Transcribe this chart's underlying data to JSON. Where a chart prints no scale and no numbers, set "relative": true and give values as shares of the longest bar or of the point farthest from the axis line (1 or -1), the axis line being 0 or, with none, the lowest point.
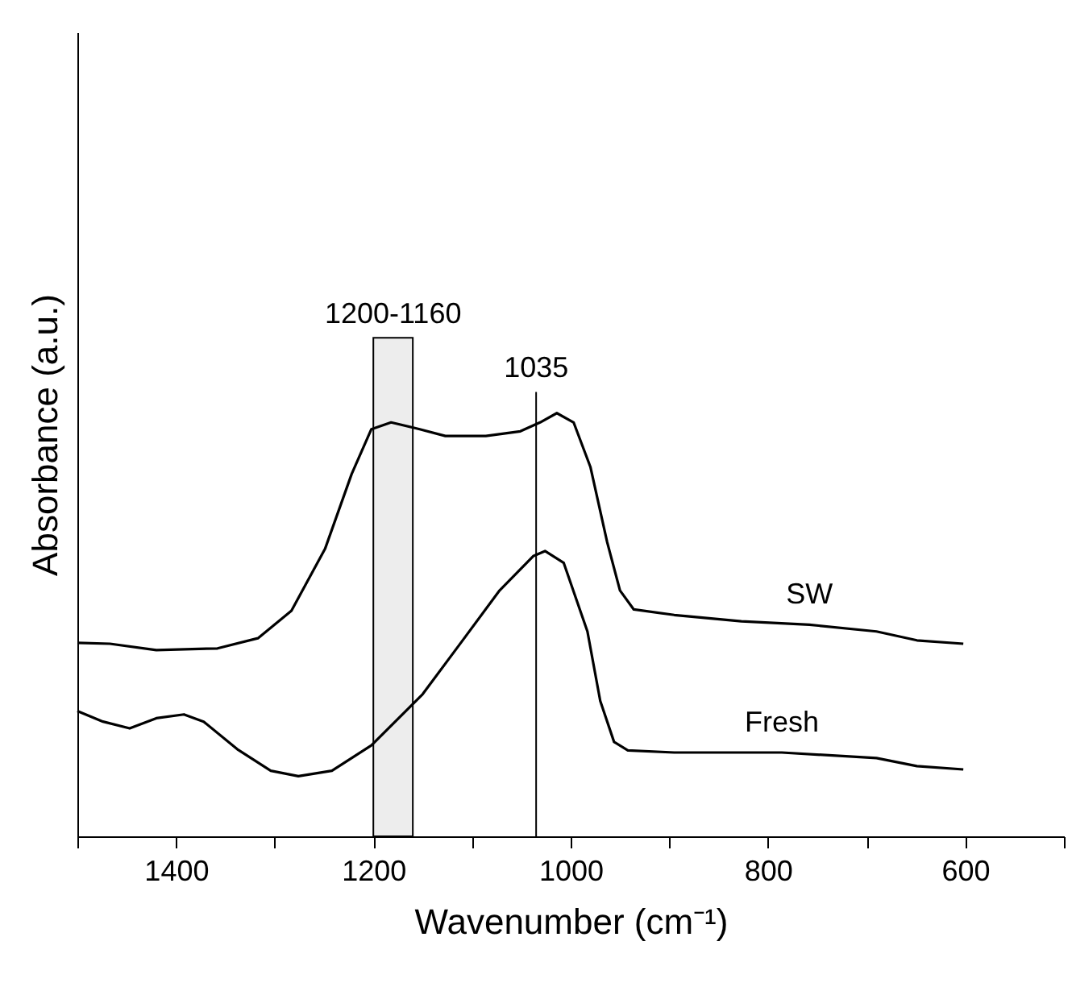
{
  "chart_data": {
    "type": "line",
    "relative": true,
    "xlabel": "Wavenumber (cm⁻¹)",
    "ylabel": "Absorbance (a.u.)",
    "xlim": [
      1500,
      500
    ],
    "xticks": [
      {
        "value": 1500,
        "label": null
      },
      1400,
      {
        "value": 1300,
        "label": null
      },
      1200,
      {
        "value": 1100,
        "label": null
      },
      1000,
      {
        "value": 900,
        "label": null
      },
      800,
      {
        "value": 700,
        "label": null
      },
      600,
      {
        "value": 500,
        "label": null
      }
    ],
    "grid": false,
    "legend": false,
    "marker": "none",
    "line_style": "solid",
    "series": [
      {
        "name": "SW",
        "color": "#000000",
        "x": [
          1500,
          1467,
          1420,
          1358,
          1317,
          1283,
          1249,
          1222,
          1202,
          1182,
          1153,
          1127,
          1086,
          1051,
          1031,
          1014,
          997,
          980,
          963,
          950,
          936,
          895,
          827,
          758,
          690,
          649,
          602
        ],
        "values": [
          0.457,
          0.455,
          0.44,
          0.444,
          0.468,
          0.533,
          0.679,
          0.856,
          0.962,
          0.978,
          0.962,
          0.946,
          0.946,
          0.957,
          0.978,
          1,
          0.978,
          0.873,
          0.695,
          0.581,
          0.536,
          0.523,
          0.508,
          0.5,
          0.484,
          0.463,
          0.455
        ]
      },
      {
        "name": "Fresh",
        "color": "#000000",
        "x": [
          1500,
          1474,
          1447,
          1420,
          1392,
          1372,
          1338,
          1304,
          1276,
          1242,
          1202,
          1150,
          1113,
          1072,
          1038,
          1026,
          1007,
          983,
          970,
          956,
          942,
          895,
          786,
          690,
          649,
          602
        ],
        "values": [
          0.296,
          0.271,
          0.255,
          0.279,
          0.288,
          0.271,
          0.206,
          0.155,
          0.142,
          0.155,
          0.215,
          0.336,
          0.452,
          0.581,
          0.662,
          0.674,
          0.646,
          0.484,
          0.32,
          0.223,
          0.203,
          0.198,
          0.198,
          0.185,
          0.166,
          0.158
        ]
      }
    ],
    "ref_lines": [
      {
        "axis": "x",
        "value": 1035,
        "label": "1035",
        "color": "#000000"
      }
    ],
    "bands": [
      {
        "axis": "x",
        "from": 1200,
        "to": 1160,
        "label": "1200-1160",
        "color": "#000000"
      }
    ]
  }
}
